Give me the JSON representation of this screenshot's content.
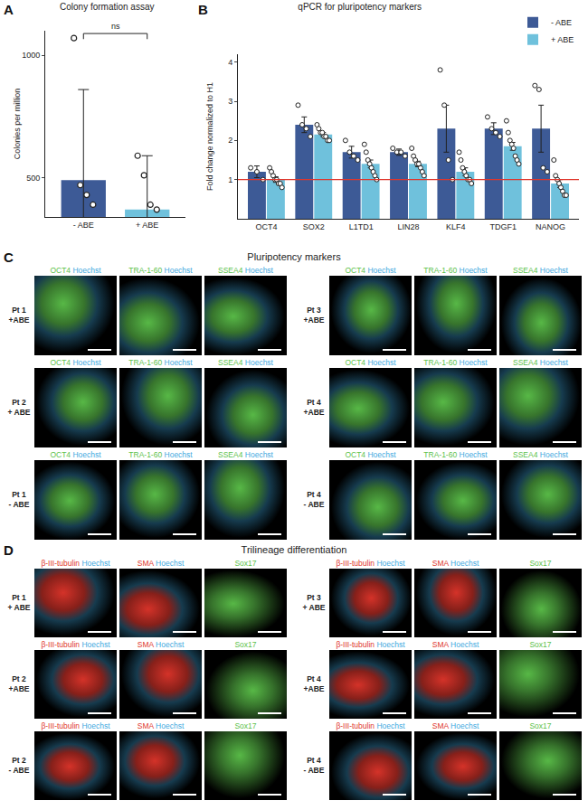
{
  "chart_data": [
    {
      "type": "bar",
      "label": "A",
      "title": "Colony formation assay",
      "y_label": "Colonies per million",
      "categories": [
        "- ABE",
        "+ ABE"
      ],
      "values": [
        490,
        370
      ],
      "errors": [
        370,
        220
      ],
      "points": [
        [
          1070,
          470,
          430,
          390
        ],
        [
          590,
          510,
          390,
          370
        ]
      ],
      "colors": [
        "#3d5a96",
        "#6fc1dc"
      ],
      "marker": "circle",
      "significance": "ns",
      "ylim": [
        340,
        1100
      ],
      "yticks": [
        500,
        1000
      ],
      "grid": false
    },
    {
      "type": "bar",
      "label": "B",
      "title": "qPCR for pluripotency markers",
      "y_label": "Fold change normalized to H1",
      "categories": [
        "OCT4",
        "SOX2",
        "L1TD1",
        "LIN28",
        "KLF4",
        "TDGF1",
        "NANOG"
      ],
      "series": [
        {
          "name": "- ABE",
          "color": "#3d5a96",
          "values": [
            1.2,
            2.4,
            1.7,
            1.7,
            2.3,
            2.3,
            2.3
          ],
          "errors": [
            0.15,
            0.2,
            0.15,
            0.08,
            0.6,
            0.15,
            0.6
          ],
          "points": [
            [
              1.3,
              1.2,
              1.0
            ],
            [
              2.9,
              2.4,
              2.3,
              2.1
            ],
            [
              2.0,
              1.7,
              1.6,
              1.5
            ],
            [
              1.8,
              1.7,
              1.7,
              1.6
            ],
            [
              3.8,
              2.9,
              1.5,
              1.0
            ],
            [
              2.6,
              2.3,
              2.2,
              2.1
            ],
            [
              3.4,
              3.3,
              1.3,
              1.2
            ]
          ]
        },
        {
          "name": "+ ABE",
          "color": "#6fc1dc",
          "values": [
            1.0,
            2.15,
            1.4,
            1.4,
            1.2,
            1.85,
            0.9
          ],
          "errors": [
            0.07,
            0.05,
            0.1,
            0.07,
            0.1,
            0.1,
            0.1
          ],
          "points": [
            [
              1.3,
              1.2,
              1.1,
              1.0,
              1.0,
              0.9,
              0.9,
              0.8
            ],
            [
              2.4,
              2.3,
              2.2,
              2.2,
              2.1,
              2.1,
              2.0,
              2.0
            ],
            [
              1.9,
              1.7,
              1.5,
              1.4,
              1.3,
              1.2,
              1.1,
              1.0
            ],
            [
              1.8,
              1.6,
              1.5,
              1.4,
              1.4,
              1.3,
              1.2,
              1.1
            ],
            [
              1.7,
              1.5,
              1.3,
              1.2,
              1.1,
              1.0,
              1.0,
              0.9
            ],
            [
              2.5,
              2.2,
              2.0,
              1.9,
              1.8,
              1.6,
              1.5,
              1.4
            ],
            [
              1.5,
              1.1,
              1.0,
              0.9,
              0.8,
              0.7,
              0.6,
              0.6
            ]
          ]
        }
      ],
      "reference_line": {
        "value": 1,
        "color": "#e0352b"
      },
      "marker": "circle",
      "legend": "top right",
      "ylim": [
        0,
        4.2
      ],
      "yticks": [
        1,
        2,
        3,
        4
      ],
      "grid": false
    }
  ],
  "panels": [
    {
      "label": "C",
      "title": "Pluripotency markers",
      "groups": [
        {
          "columns": [
            [
              {
                "text": "OCT4",
                "color": "#5cc24a"
              },
              {
                "text": "Hoechst",
                "color": "#3fa9e0"
              }
            ],
            [
              {
                "text": "TRA-1-60",
                "color": "#5cc24a"
              },
              {
                "text": "Hoechst",
                "color": "#3fa9e0"
              }
            ],
            [
              {
                "text": "SSEA4",
                "color": "#5cc24a"
              },
              {
                "text": "Hoechst",
                "color": "#3fa9e0"
              }
            ]
          ],
          "rows": [
            [
              "Pt 1",
              "+ABE"
            ],
            [
              "Pt 2",
              "+ ABE"
            ],
            [
              "Pt 1",
              "- ABE"
            ]
          ]
        },
        {
          "columns": [
            [
              {
                "text": "OCT4",
                "color": "#5cc24a"
              },
              {
                "text": "Hoechst",
                "color": "#3fa9e0"
              }
            ],
            [
              {
                "text": "TRA-1-60",
                "color": "#5cc24a"
              },
              {
                "text": "Hoechst",
                "color": "#3fa9e0"
              }
            ],
            [
              {
                "text": "SSEA4",
                "color": "#5cc24a"
              },
              {
                "text": "Hoechst",
                "color": "#3fa9e0"
              }
            ]
          ],
          "rows": [
            [
              "Pt 3",
              "+ABE"
            ],
            [
              "Pt 4",
              "+ABE"
            ],
            [
              "Pt 4",
              "- ABE"
            ]
          ]
        }
      ]
    },
    {
      "label": "D",
      "title": "Trilineage differentiation",
      "groups": [
        {
          "columns": [
            [
              {
                "text": "β-III-tubulin",
                "color": "#e0352b"
              },
              {
                "text": "Hoechst",
                "color": "#3fa9e0"
              }
            ],
            [
              {
                "text": "SMA",
                "color": "#e0352b"
              },
              {
                "text": "Hoechst",
                "color": "#3fa9e0"
              }
            ],
            [
              {
                "text": "Sox17",
                "color": "#5cc24a"
              }
            ]
          ],
          "rows": [
            [
              "Pt 1",
              "+ ABE"
            ],
            [
              "Pt 2",
              "+ABE"
            ],
            [
              "Pt 2",
              "- ABE"
            ]
          ]
        },
        {
          "columns": [
            [
              {
                "text": "β-III-tubulin",
                "color": "#e0352b"
              },
              {
                "text": "Hoechst",
                "color": "#3fa9e0"
              }
            ],
            [
              {
                "text": "SMA",
                "color": "#e0352b"
              },
              {
                "text": "Hoechst",
                "color": "#3fa9e0"
              }
            ],
            [
              {
                "text": "Sox17",
                "color": "#5cc24a"
              }
            ]
          ],
          "rows": [
            [
              "Pt 3",
              "+ ABE"
            ],
            [
              "Pt 4",
              "+ABE"
            ],
            [
              "Pt 4",
              "- ABE"
            ]
          ]
        }
      ]
    }
  ]
}
